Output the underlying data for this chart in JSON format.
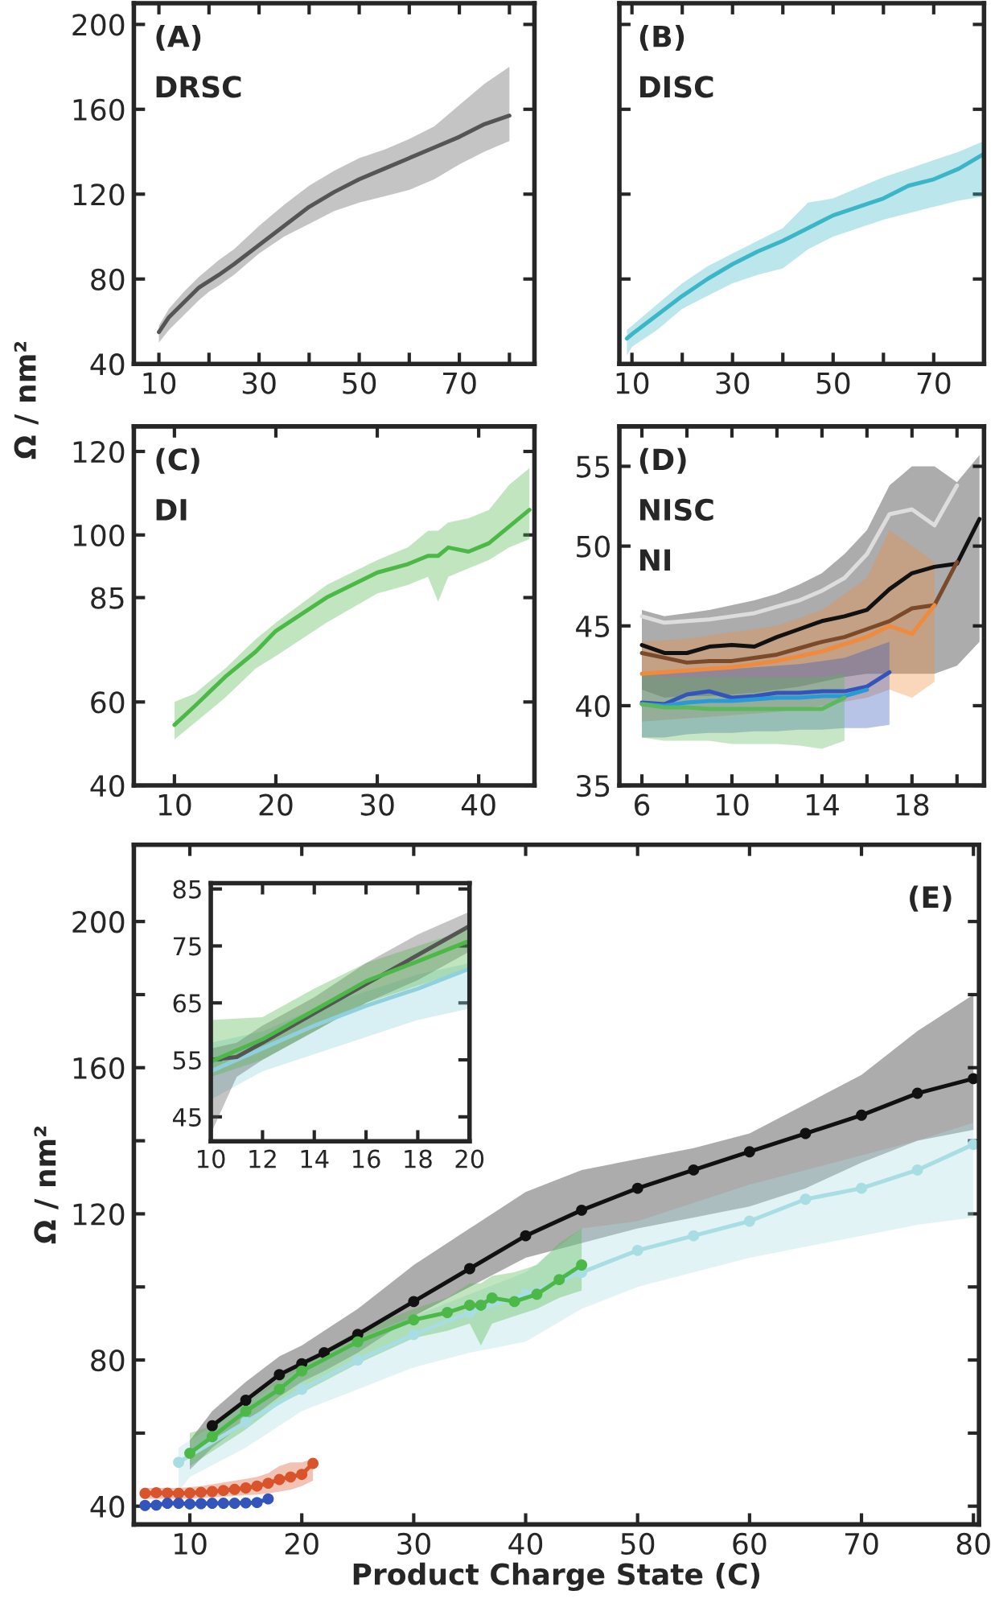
{
  "chart_data": [
    {
      "type": "line",
      "annotations": [
        "(A)",
        "DRSC"
      ],
      "ylabel": "Ω / nm²",
      "marker": "none",
      "line_style": "solid",
      "grid": false,
      "xlim": [
        5,
        85
      ],
      "xticks": [
        10,
        {
          "value": 20,
          "label": null
        },
        30,
        {
          "value": 40,
          "label": null
        },
        50,
        {
          "value": 60,
          "label": null
        },
        70,
        {
          "value": 80,
          "label": null
        }
      ],
      "ylim": [
        40,
        210
      ],
      "yticks": [
        40,
        80,
        120,
        160,
        200
      ],
      "series": [
        {
          "color": "#555555",
          "x": [
            10,
            12,
            15,
            18,
            20,
            22,
            25,
            30,
            35,
            40,
            45,
            50,
            55,
            60,
            65,
            70,
            75,
            80
          ],
          "values": [
            55,
            62,
            69,
            76,
            79,
            82,
            87,
            96,
            105,
            114,
            121,
            127,
            132,
            137,
            142,
            147,
            153,
            157
          ],
          "lower": [
            50,
            56,
            63,
            70,
            74,
            77,
            82,
            92,
            100,
            106,
            112,
            116,
            119,
            122,
            127,
            134,
            140,
            145
          ],
          "upper": [
            58,
            66,
            74,
            81,
            85,
            89,
            94,
            105,
            115,
            124,
            131,
            137,
            141,
            146,
            152,
            162,
            172,
            180
          ]
        }
      ]
    },
    {
      "type": "line",
      "annotations": [
        "(B)",
        "DISC"
      ],
      "marker": "none",
      "line_style": "solid",
      "grid": false,
      "tick_labels": "x",
      "xlim": [
        7.5,
        80
      ],
      "xticks": [
        10,
        {
          "value": 20,
          "label": null
        },
        30,
        {
          "value": 40,
          "label": null
        },
        50,
        {
          "value": 60,
          "label": null
        },
        70
      ],
      "ylim": [
        40,
        210
      ],
      "yticks": [
        40,
        80,
        120,
        160,
        200
      ],
      "series": [
        {
          "color": "#3bb6c6",
          "x": [
            9,
            10,
            15,
            20,
            25,
            30,
            35,
            40,
            45,
            50,
            55,
            60,
            65,
            70,
            75,
            80
          ],
          "values": [
            52,
            54,
            63,
            72,
            80,
            87,
            93,
            98,
            104,
            110,
            114,
            118,
            124,
            127,
            132,
            139
          ],
          "lower": [
            44,
            48,
            56,
            66,
            72,
            78,
            82,
            85,
            94,
            100,
            104,
            108,
            111,
            114,
            117,
            119
          ],
          "upper": [
            56,
            58,
            68,
            78,
            86,
            92,
            98,
            104,
            116,
            118,
            123,
            128,
            132,
            136,
            140,
            145
          ]
        }
      ]
    },
    {
      "type": "line",
      "annotations": [
        "(C)",
        "DI"
      ],
      "marker": "none",
      "line_style": "solid",
      "grid": false,
      "xlim": [
        6,
        45.5
      ],
      "xticks": [
        10,
        20,
        30,
        40
      ],
      "ylim": [
        40,
        126
      ],
      "yticks": [
        40,
        60,
        85,
        100,
        120
      ],
      "series": [
        {
          "color": "#4cb847",
          "x": [
            10,
            12,
            15,
            18,
            20,
            25,
            30,
            33,
            35,
            36,
            37,
            39,
            41,
            43,
            45
          ],
          "values": [
            54.5,
            59,
            66,
            72,
            77,
            85,
            91,
            93,
            95,
            95,
            97,
            96,
            98,
            102,
            106
          ],
          "lower": [
            51,
            55,
            61,
            68,
            71,
            79,
            86,
            88,
            90,
            84,
            90,
            92,
            94,
            97,
            99
          ],
          "upper": [
            60,
            62,
            68,
            75,
            79,
            88,
            94,
            97,
            101,
            101,
            103,
            104,
            106,
            112,
            116
          ]
        }
      ]
    },
    {
      "type": "line",
      "annotations": [
        "(D)",
        "NISC",
        "NI"
      ],
      "marker": "none",
      "line_style": "solid",
      "grid": false,
      "xlim": [
        5,
        21.2
      ],
      "xticks": [
        6,
        {
          "value": 8,
          "label": null
        },
        10,
        {
          "value": 12,
          "label": null
        },
        14,
        {
          "value": 16,
          "label": null
        },
        18,
        {
          "value": 20,
          "label": null
        }
      ],
      "ylim": [
        35,
        57.5
      ],
      "yticks": [
        35,
        40,
        45,
        50,
        55
      ],
      "series": [
        {
          "color": "#dddddd",
          "x": [
            6,
            7,
            8,
            9,
            10,
            11,
            12,
            13,
            14,
            15,
            16,
            17,
            18,
            19,
            20
          ],
          "values": [
            45.6,
            45.2,
            45.3,
            45.4,
            45.6,
            45.8,
            46.2,
            46.6,
            47.2,
            48,
            49.5,
            52,
            52.3,
            51.3,
            53.8
          ]
        },
        {
          "color": "#111111",
          "x": [
            6,
            7,
            8,
            9,
            10,
            11,
            12,
            13,
            14,
            15,
            16,
            17,
            18,
            19,
            20,
            21
          ],
          "values": [
            43.8,
            43.3,
            43.3,
            43.7,
            43.8,
            43.7,
            44.3,
            44.8,
            45.3,
            45.6,
            46,
            47.3,
            48.3,
            48.7,
            48.9,
            51.7
          ],
          "lower": [
            41,
            40.5,
            40.6,
            40.6,
            40.7,
            40.8,
            41,
            41.2,
            41.5,
            41.8,
            42,
            42,
            42,
            42,
            42.5,
            44
          ],
          "upper": [
            46,
            45.6,
            45.8,
            46,
            46.3,
            46.6,
            47,
            47.6,
            48.3,
            49.5,
            51,
            53.8,
            55,
            55,
            54,
            55.7
          ]
        },
        {
          "color": "#7a4a2a",
          "x": [
            6,
            7,
            8,
            9,
            10,
            11,
            12,
            13,
            14,
            15,
            16,
            17,
            18,
            19,
            20
          ],
          "values": [
            43.3,
            43,
            42.7,
            42.8,
            42.8,
            43,
            43.2,
            43.6,
            44,
            44.3,
            44.8,
            45.3,
            46.1,
            46.3,
            49
          ]
        },
        {
          "color": "#f08a3c",
          "x": [
            6,
            8,
            10,
            12,
            14,
            16,
            17,
            18,
            19
          ],
          "values": [
            42,
            42.2,
            42.4,
            42.8,
            43.4,
            44.3,
            45,
            44.5,
            46.3
          ],
          "lower": [
            39,
            39.2,
            39.4,
            39.6,
            40,
            40.5,
            41,
            40.5,
            41.5
          ],
          "upper": [
            44,
            44.2,
            44.6,
            45,
            46,
            48,
            51,
            50,
            49
          ]
        },
        {
          "color": "#3355bb",
          "x": [
            6,
            7,
            8,
            9,
            10,
            11,
            12,
            13,
            14,
            15,
            16,
            17
          ],
          "values": [
            40.2,
            40.1,
            40.7,
            40.9,
            40.5,
            40.6,
            40.8,
            40.8,
            40.9,
            40.9,
            41.2,
            42.1
          ],
          "lower": [
            38,
            38,
            38.2,
            38.3,
            38.3,
            38.4,
            38.4,
            38.5,
            38.5,
            38.6,
            38.6,
            38.8
          ],
          "upper": [
            42,
            42,
            42.2,
            42.3,
            42.3,
            42.4,
            42.5,
            42.6,
            42.8,
            43,
            43.5,
            44
          ]
        },
        {
          "color": "#2a9ad6",
          "x": [
            6,
            7,
            8,
            9,
            10,
            11,
            12,
            13,
            14,
            15,
            16
          ],
          "values": [
            40.1,
            40,
            40.2,
            40.3,
            40.3,
            40.4,
            40.5,
            40.5,
            40.6,
            40.6,
            41
          ]
        },
        {
          "color": "#5cb85c",
          "x": [
            6,
            7,
            8,
            9,
            10,
            11,
            12,
            13,
            14,
            15
          ],
          "values": [
            40.1,
            39.9,
            39.9,
            39.8,
            39.8,
            39.8,
            39.8,
            39.8,
            39.8,
            40.5
          ],
          "lower": [
            38,
            37.8,
            37.8,
            37.8,
            37.6,
            37.6,
            37.6,
            37.5,
            37.3,
            37.8
          ],
          "upper": [
            42,
            41.8,
            41.8,
            41.8,
            41.8,
            41.8,
            41.8,
            41.8,
            41.8,
            42
          ]
        }
      ]
    },
    {
      "type": "line",
      "annotations": [
        "(E)"
      ],
      "xlabel": "Product Charge State (C)",
      "ylabel": "Ω / nm²",
      "marker": "circle",
      "line_style": "solid",
      "grid": false,
      "xlim": [
        5,
        80.5
      ],
      "xticks": [
        10,
        20,
        30,
        40,
        50,
        60,
        70,
        80
      ],
      "ylim": [
        35,
        221
      ],
      "yticks": [
        40,
        {
          "value": 60,
          "label": null
        },
        80,
        {
          "value": 100,
          "label": null
        },
        120,
        {
          "value": 140,
          "label": null
        },
        160,
        {
          "value": 180,
          "label": null
        },
        200
      ],
      "series": [
        {
          "color": "#111111",
          "x": [
            10,
            12,
            15,
            18,
            20,
            22,
            25,
            30,
            35,
            40,
            45,
            50,
            55,
            60,
            65,
            70,
            75,
            80
          ],
          "values": [
            null,
            62,
            69,
            76,
            79,
            82,
            87,
            96,
            105,
            114,
            121,
            127,
            132,
            137,
            142,
            147,
            153,
            157
          ],
          "lower": [
            50,
            56,
            63,
            70,
            74,
            77,
            82,
            92,
            100,
            108,
            112,
            116,
            119,
            122,
            127,
            134,
            140,
            143
          ],
          "upper": [
            58,
            66,
            74,
            81,
            84,
            88,
            94,
            106,
            116,
            126,
            132,
            135,
            138,
            142,
            150,
            158,
            170,
            180
          ]
        },
        {
          "color": "#a8dde3",
          "x": [
            9,
            10,
            15,
            20,
            25,
            30,
            35,
            40,
            45,
            50,
            55,
            60,
            65,
            70,
            75,
            80
          ],
          "values": [
            52,
            null,
            63,
            72,
            80,
            87,
            93,
            98,
            104,
            110,
            114,
            118,
            124,
            127,
            132,
            139
          ],
          "lower": [
            44,
            48,
            56,
            66,
            72,
            78,
            82,
            85,
            94,
            100,
            104,
            108,
            111,
            114,
            117,
            119
          ],
          "upper": [
            56,
            58,
            68,
            78,
            86,
            92,
            98,
            104,
            116,
            118,
            123,
            128,
            132,
            136,
            140,
            145
          ]
        },
        {
          "color": "#4cb847",
          "x": [
            10,
            12,
            15,
            18,
            20,
            25,
            30,
            33,
            35,
            36,
            37,
            39,
            41,
            43,
            45
          ],
          "values": [
            54.5,
            59,
            66,
            72,
            77,
            85,
            91,
            93,
            95,
            95,
            97,
            96,
            98,
            102,
            106
          ],
          "lower": [
            51,
            55,
            61,
            68,
            71,
            79,
            86,
            88,
            90,
            84,
            90,
            92,
            94,
            97,
            99
          ],
          "upper": [
            60,
            62,
            68,
            75,
            79,
            88,
            94,
            97,
            101,
            101,
            103,
            104,
            106,
            112,
            116
          ]
        },
        {
          "color": "#d9532b",
          "x": [
            6,
            7,
            8,
            9,
            10,
            11,
            12,
            13,
            14,
            15,
            16,
            17,
            18,
            19,
            20,
            21
          ],
          "values": [
            43.5,
            43.7,
            43.6,
            43.5,
            43.6,
            43.8,
            44,
            44.3,
            44.6,
            45,
            45.5,
            46.3,
            47.3,
            48,
            48.7,
            51.7
          ],
          "lower": [
            42,
            42,
            42,
            42,
            42,
            42.2,
            42.4,
            42.6,
            42.8,
            43,
            43.2,
            43.5,
            44,
            44.5,
            45.5,
            47
          ],
          "upper": [
            45,
            45,
            45,
            45,
            45.2,
            45.5,
            46,
            46.5,
            47,
            47.5,
            48,
            49,
            51,
            52,
            52,
            53
          ]
        },
        {
          "color": "#3355bb",
          "x": [
            6,
            7,
            8,
            9,
            10,
            11,
            12,
            13,
            14,
            15,
            16,
            17
          ],
          "values": [
            40.2,
            40.3,
            40.8,
            40.8,
            40.6,
            40.7,
            40.8,
            40.8,
            40.8,
            40.9,
            41,
            42
          ]
        }
      ]
    },
    {
      "type": "line",
      "marker": "none",
      "line_style": "solid",
      "grid": false,
      "xlim": [
        10,
        20
      ],
      "xticks": [
        10,
        12,
        14,
        16,
        18,
        20
      ],
      "ylim": [
        40.7,
        86
      ],
      "yticks": [
        45,
        55,
        65,
        75,
        85
      ],
      "series": [
        {
          "color": "#8fd0dc",
          "x": [
            10,
            12,
            14,
            16,
            18,
            20
          ],
          "values": [
            53,
            57,
            61,
            64.5,
            67.5,
            71
          ],
          "lower": [
            48,
            53,
            56,
            59,
            62,
            64
          ],
          "upper": [
            58,
            60,
            64,
            67,
            70,
            72
          ]
        },
        {
          "color": "#555555",
          "x": [
            10,
            11,
            12,
            14,
            16,
            18,
            20
          ],
          "values": [
            55,
            55.5,
            58,
            63.2,
            68.3,
            73.4,
            78.5
          ],
          "lower": [
            42,
            52,
            55,
            60,
            65,
            69,
            74
          ],
          "upper": [
            57,
            58,
            61,
            66,
            72,
            77,
            81
          ]
        },
        {
          "color": "#4cb847",
          "x": [
            10,
            12,
            14,
            16,
            18,
            20
          ],
          "values": [
            54.7,
            58.6,
            63.7,
            68.8,
            72.3,
            75.9
          ],
          "lower": [
            52,
            55,
            60,
            65,
            68,
            71
          ],
          "upper": [
            62,
            62.5,
            67.5,
            72,
            75,
            78
          ]
        }
      ]
    }
  ]
}
